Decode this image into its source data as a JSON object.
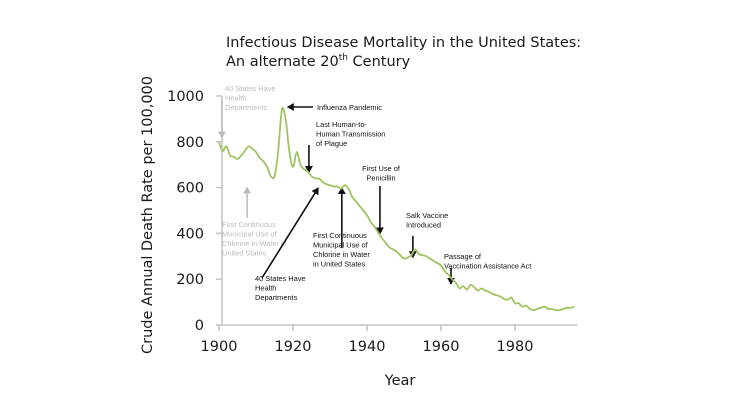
{
  "chart_data": {
    "type": "line",
    "title": "Infectious Disease Mortality in the United States:",
    "subtitle_prefix": "An alternate 20",
    "subtitle_sup": "th",
    "subtitle_suffix": " Century",
    "xlabel": "Year",
    "ylabel": "Crude Annual Death Rate per 100,000",
    "xlim": [
      1900,
      1996
    ],
    "ylim": [
      0,
      1000
    ],
    "x_ticks": [
      "1900",
      "1920",
      "1940",
      "1960",
      "1980"
    ],
    "x_tick_values": [
      1900,
      1920,
      1940,
      1960,
      1980
    ],
    "y_ticks": [
      "0",
      "200",
      "400",
      "600",
      "800",
      "1000"
    ],
    "y_tick_values": [
      0,
      200,
      400,
      600,
      800,
      1000
    ],
    "grid": false,
    "line_color": "#9dc45f",
    "series": [
      {
        "name": "Infectious disease mortality",
        "x": [
          1900,
          1901,
          1902,
          1903,
          1904,
          1905,
          1906,
          1907,
          1908,
          1909,
          1910,
          1911,
          1912,
          1913,
          1914,
          1915,
          1916,
          1917,
          1918,
          1919,
          1920,
          1921,
          1922,
          1923,
          1924,
          1925,
          1926,
          1927,
          1928,
          1929,
          1930,
          1931,
          1932,
          1933,
          1934,
          1935,
          1936,
          1937,
          1938,
          1939,
          1940,
          1941,
          1942,
          1943,
          1944,
          1945,
          1946,
          1947,
          1948,
          1949,
          1950,
          1951,
          1952,
          1953,
          1954,
          1955,
          1956,
          1957,
          1958,
          1959,
          1960,
          1961,
          1962,
          1963,
          1964,
          1965,
          1966,
          1967,
          1968,
          1969,
          1970,
          1971,
          1972,
          1973,
          1974,
          1975,
          1976,
          1977,
          1978,
          1979,
          1980,
          1981,
          1982,
          1983,
          1984,
          1985,
          1986,
          1987,
          1988,
          1989,
          1990,
          1991,
          1992,
          1993,
          1994,
          1995,
          1996
        ],
        "values": [
          797,
          760,
          780,
          740,
          735,
          725,
          740,
          760,
          780,
          770,
          755,
          730,
          715,
          690,
          650,
          650,
          760,
          940,
          900,
          760,
          690,
          755,
          700,
          680,
          670,
          650,
          640,
          640,
          625,
          615,
          610,
          605,
          605,
          595,
          610,
          595,
          560,
          540,
          520,
          500,
          480,
          450,
          430,
          405,
          380,
          360,
          340,
          330,
          320,
          305,
          290,
          295,
          305,
          330,
          310,
          305,
          300,
          290,
          280,
          270,
          260,
          235,
          220,
          200,
          185,
          160,
          170,
          155,
          175,
          165,
          150,
          160,
          150,
          145,
          135,
          130,
          125,
          115,
          110,
          120,
          95,
          95,
          80,
          85,
          70,
          65,
          70,
          75,
          80,
          70,
          70,
          65,
          65,
          70,
          75,
          75,
          80
        ]
      }
    ],
    "annotations": [
      {
        "id": "states-gray",
        "lines": [
          "40 States Have",
          "Health",
          "Departments"
        ],
        "color": "gray",
        "arrow_from": [
          1900.8,
          983
        ],
        "arrow_to": [
          1900.8,
          818
        ]
      },
      {
        "id": "influenza",
        "lines": [
          "Influenza Pandemic"
        ],
        "color": "black",
        "arrow_from": [
          1925.4,
          952
        ],
        "arrow_to": [
          1918.6,
          952
        ]
      },
      {
        "id": "plague",
        "lines": [
          "Last Human-to-",
          "Human Transmission",
          "of Plague"
        ],
        "color": "black",
        "arrow_from": [
          1924.3,
          786
        ],
        "arrow_to": [
          1924.3,
          668
        ]
      },
      {
        "id": "chlorine-gray",
        "lines": [
          "First Continuous",
          "Municipal Use of",
          "Chlorine in Water in",
          "United States"
        ],
        "color": "gray",
        "arrow_from": [
          1907.6,
          467
        ],
        "arrow_to": [
          1907.6,
          600
        ]
      },
      {
        "id": "states-black",
        "lines": [
          "40 States Have",
          "Health",
          "Departments"
        ],
        "color": "black",
        "arrow_from": [
          1911.6,
          205
        ],
        "arrow_to": [
          1926.8,
          598
        ]
      },
      {
        "id": "chlorine-black",
        "lines": [
          "First Continuous",
          "Municipal Use of",
          "Chlorine in Water",
          "in United States"
        ],
        "color": "black",
        "arrow_from": [
          1933.2,
          336
        ],
        "arrow_to": [
          1933.2,
          598
        ]
      },
      {
        "id": "penicillin",
        "lines": [
          "First Use of",
          "Penicillin"
        ],
        "color": "black",
        "arrow_from": [
          1943.5,
          607
        ],
        "arrow_to": [
          1943.5,
          400
        ]
      },
      {
        "id": "salk",
        "lines": [
          "Salk Vaccine",
          "Introduced"
        ],
        "color": "black",
        "arrow_from": [
          1952.4,
          389
        ],
        "arrow_to": [
          1952.4,
          296
        ]
      },
      {
        "id": "vaccination-act",
        "lines": [
          "Passage of",
          "Vaccination Assistance Act"
        ],
        "color": "black",
        "arrow_from": [
          1962.7,
          249
        ],
        "arrow_to": [
          1962.7,
          180
        ]
      }
    ]
  }
}
